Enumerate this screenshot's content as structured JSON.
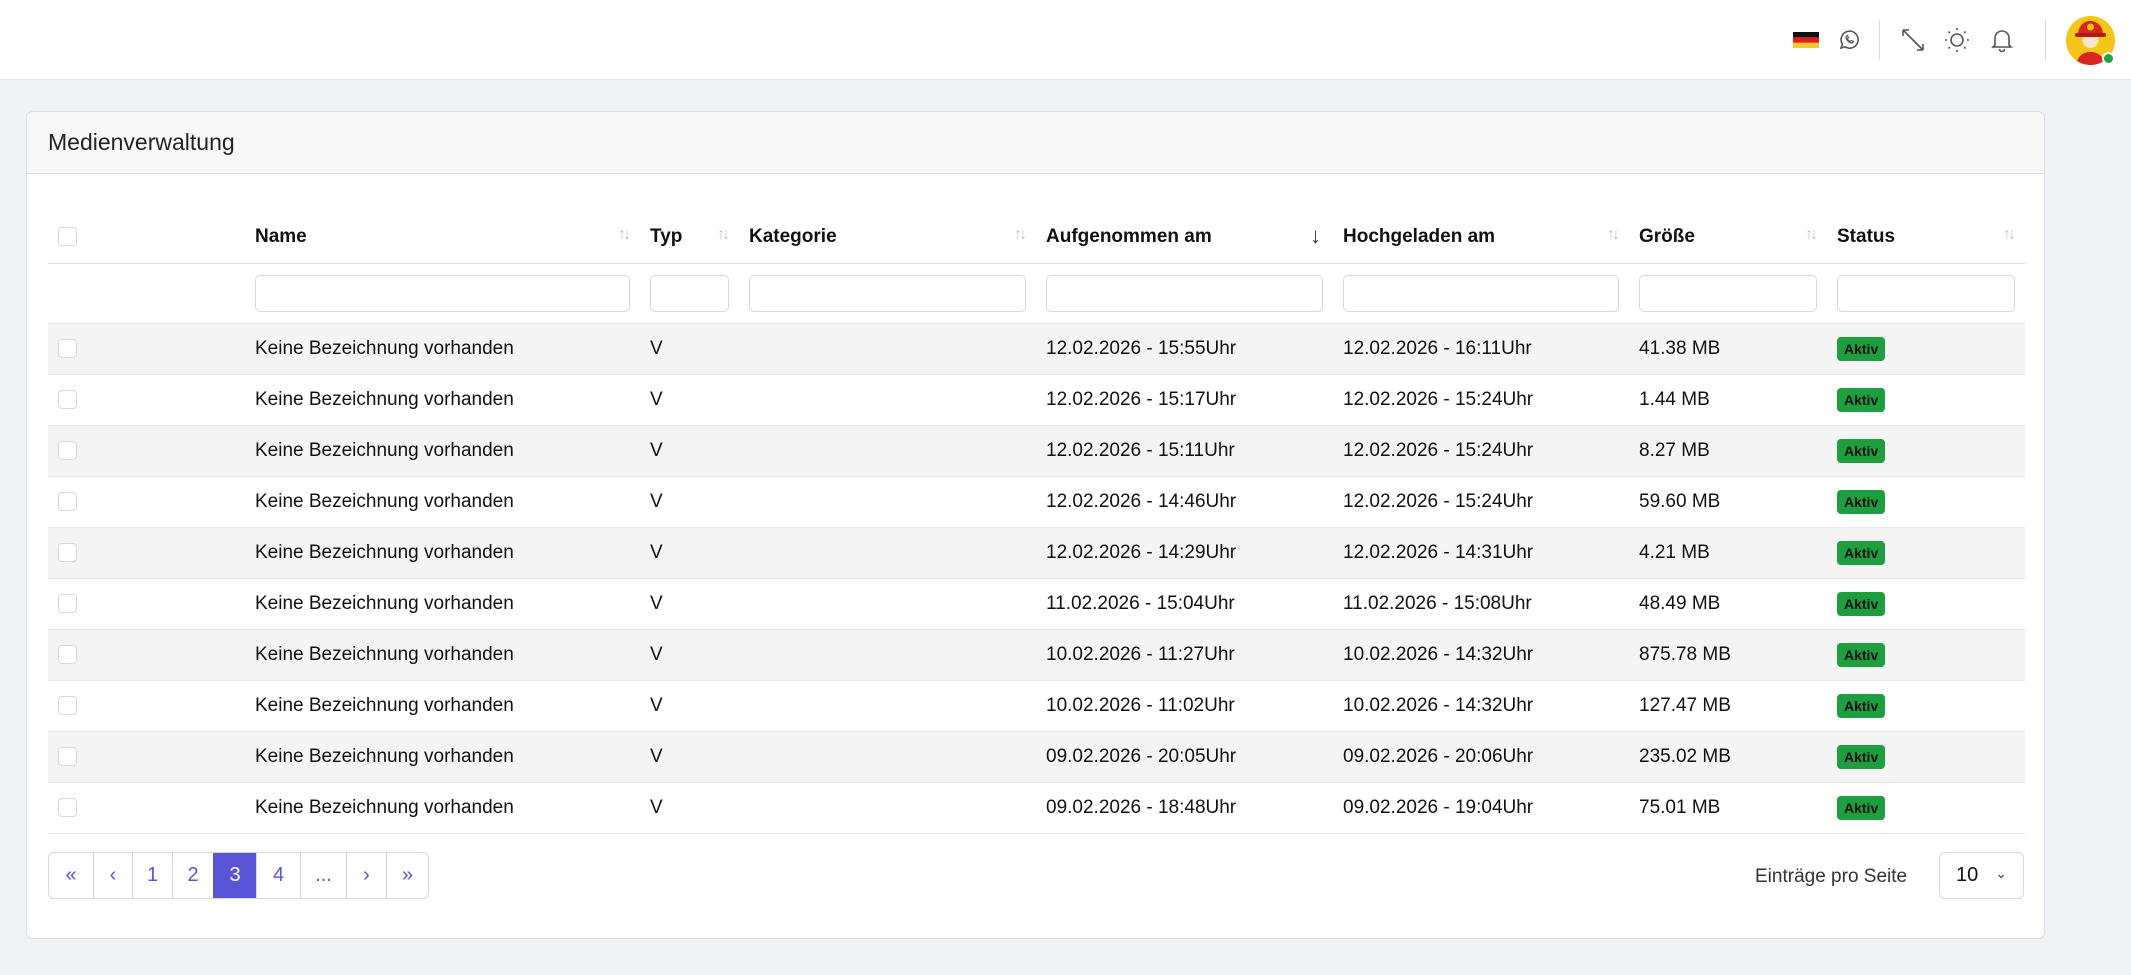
{
  "topbar": {
    "icons": [
      "germany-flag-icon",
      "whatsapp-icon",
      "fullscreen-icon",
      "sun-icon",
      "bell-icon"
    ],
    "avatar_status_color": "#1fa33f"
  },
  "card": {
    "title": "Medienverwaltung"
  },
  "table": {
    "columns": [
      {
        "label": "Name",
        "sort": "none"
      },
      {
        "label": "Typ",
        "sort": "none"
      },
      {
        "label": "Kategorie",
        "sort": "none"
      },
      {
        "label": "Aufgenommen am",
        "sort": "desc"
      },
      {
        "label": "Hochgeladen am",
        "sort": "none"
      },
      {
        "label": "Größe",
        "sort": "none"
      },
      {
        "label": "Status",
        "sort": "none"
      }
    ],
    "rows": [
      {
        "name": "Keine Bezeichnung vorhanden",
        "typ": "V",
        "kategorie": "",
        "aufgenommen": "12.02.2026 - 15:55Uhr",
        "hochgeladen": "12.02.2026 - 16:11Uhr",
        "groesse": "41.38 MB",
        "status": "Aktiv"
      },
      {
        "name": "Keine Bezeichnung vorhanden",
        "typ": "V",
        "kategorie": "",
        "aufgenommen": "12.02.2026 - 15:17Uhr",
        "hochgeladen": "12.02.2026 - 15:24Uhr",
        "groesse": "1.44 MB",
        "status": "Aktiv"
      },
      {
        "name": "Keine Bezeichnung vorhanden",
        "typ": "V",
        "kategorie": "",
        "aufgenommen": "12.02.2026 - 15:11Uhr",
        "hochgeladen": "12.02.2026 - 15:24Uhr",
        "groesse": "8.27 MB",
        "status": "Aktiv"
      },
      {
        "name": "Keine Bezeichnung vorhanden",
        "typ": "V",
        "kategorie": "",
        "aufgenommen": "12.02.2026 - 14:46Uhr",
        "hochgeladen": "12.02.2026 - 15:24Uhr",
        "groesse": "59.60 MB",
        "status": "Aktiv"
      },
      {
        "name": "Keine Bezeichnung vorhanden",
        "typ": "V",
        "kategorie": "",
        "aufgenommen": "12.02.2026 - 14:29Uhr",
        "hochgeladen": "12.02.2026 - 14:31Uhr",
        "groesse": "4.21 MB",
        "status": "Aktiv"
      },
      {
        "name": "Keine Bezeichnung vorhanden",
        "typ": "V",
        "kategorie": "",
        "aufgenommen": "11.02.2026 - 15:04Uhr",
        "hochgeladen": "11.02.2026 - 15:08Uhr",
        "groesse": "48.49 MB",
        "status": "Aktiv"
      },
      {
        "name": "Keine Bezeichnung vorhanden",
        "typ": "V",
        "kategorie": "",
        "aufgenommen": "10.02.2026 - 11:27Uhr",
        "hochgeladen": "10.02.2026 - 14:32Uhr",
        "groesse": "875.78 MB",
        "status": "Aktiv"
      },
      {
        "name": "Keine Bezeichnung vorhanden",
        "typ": "V",
        "kategorie": "",
        "aufgenommen": "10.02.2026 - 11:02Uhr",
        "hochgeladen": "10.02.2026 - 14:32Uhr",
        "groesse": "127.47 MB",
        "status": "Aktiv"
      },
      {
        "name": "Keine Bezeichnung vorhanden",
        "typ": "V",
        "kategorie": "",
        "aufgenommen": "09.02.2026 - 20:05Uhr",
        "hochgeladen": "09.02.2026 - 20:06Uhr",
        "groesse": "235.02 MB",
        "status": "Aktiv"
      },
      {
        "name": "Keine Bezeichnung vorhanden",
        "typ": "V",
        "kategorie": "",
        "aufgenommen": "09.02.2026 - 18:48Uhr",
        "hochgeladen": "09.02.2026 - 19:04Uhr",
        "groesse": "75.01 MB",
        "status": "Aktiv"
      }
    ],
    "status_color": "#1e9e3e"
  },
  "pagination": {
    "items": [
      "«",
      "‹",
      "1",
      "2",
      "3",
      "4",
      "...",
      "›",
      "»"
    ],
    "current": "3",
    "accent": "#5a55d6"
  },
  "page_size": {
    "label": "Einträge pro Seite",
    "value": "10"
  }
}
